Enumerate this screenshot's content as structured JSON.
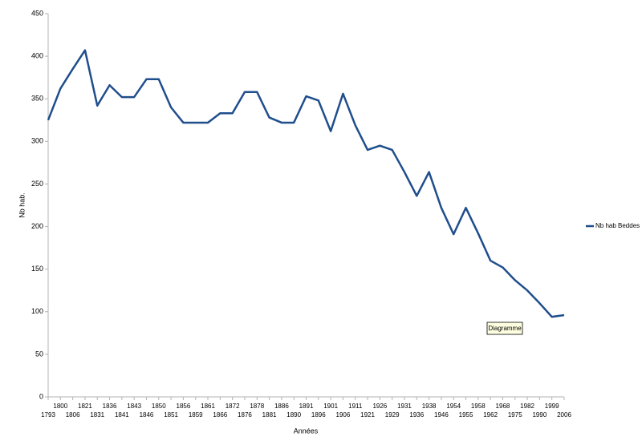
{
  "chart_data": {
    "type": "line",
    "x_label": "Années",
    "y_label": "Nb hab.",
    "categories": [
      "1793",
      "1800",
      "1806",
      "1821",
      "1831",
      "1836",
      "1841",
      "1843",
      "1846",
      "1850",
      "1851",
      "1856",
      "1859",
      "1861",
      "1866",
      "1872",
      "1876",
      "1878",
      "1881",
      "1886",
      "1890",
      "1891",
      "1896",
      "1901",
      "1906",
      "1911",
      "1921",
      "1926",
      "1929",
      "1931",
      "1936",
      "1938",
      "1946",
      "1954",
      "1955",
      "1958",
      "1962",
      "1968",
      "1975",
      "1982",
      "1990",
      "1999",
      "2006"
    ],
    "series": [
      {
        "name": "Nb hab Beddes",
        "color": "#1f4e8c",
        "values": [
          325,
          362,
          385,
          407,
          342,
          366,
          352,
          352,
          373,
          373,
          340,
          322,
          322,
          322,
          333,
          333,
          358,
          358,
          328,
          322,
          322,
          353,
          348,
          312,
          356,
          319,
          290,
          295,
          290,
          264,
          236,
          264,
          222,
          191,
          222,
          192,
          160,
          152,
          137,
          125,
          110,
          94,
          96
        ]
      }
    ],
    "ylim": [
      0,
      450
    ],
    "yticks": [
      0,
      50,
      100,
      150,
      200,
      250,
      300,
      350,
      400,
      450
    ],
    "grid": false,
    "legend": "right",
    "tooltip": "Diagramme"
  }
}
